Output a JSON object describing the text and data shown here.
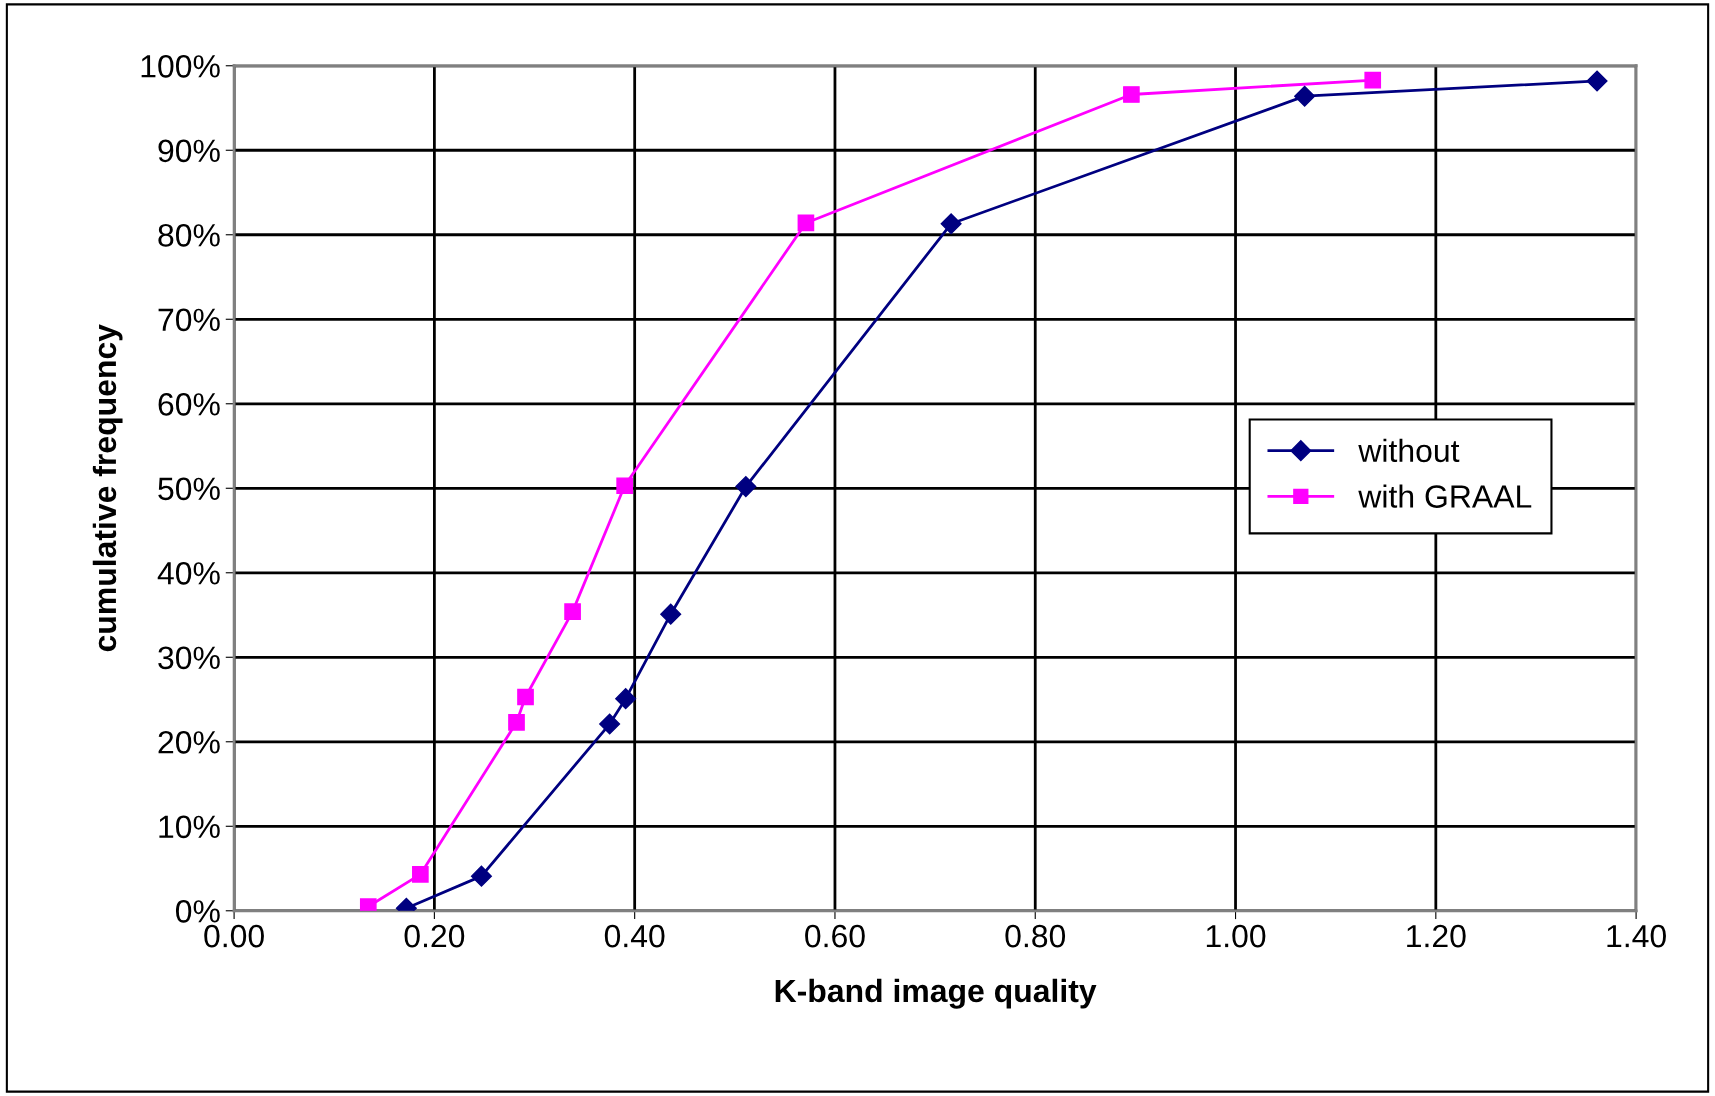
{
  "chart_data": {
    "type": "line",
    "xlabel": "K-band image quality",
    "ylabel": "cumulative frequency",
    "xlim": [
      0,
      1.4
    ],
    "xticks": [
      {
        "value": 0,
        "label": "0.00"
      },
      {
        "value": 0.2,
        "label": "0.20"
      },
      {
        "value": 0.4,
        "label": "0.40"
      },
      {
        "value": 0.6,
        "label": "0.60"
      },
      {
        "value": 0.8,
        "label": "0.80"
      },
      {
        "value": 1.0,
        "label": "1.00"
      },
      {
        "value": 1.2,
        "label": "1.20"
      },
      {
        "value": 1.4,
        "label": "1.40"
      }
    ],
    "ylim": [
      0,
      100
    ],
    "yticks": [
      {
        "value": 0,
        "label": "0%"
      },
      {
        "value": 10,
        "label": "10%"
      },
      {
        "value": 20,
        "label": "20%"
      },
      {
        "value": 30,
        "label": "30%"
      },
      {
        "value": 40,
        "label": "40%"
      },
      {
        "value": 50,
        "label": "50%"
      },
      {
        "value": 60,
        "label": "60%"
      },
      {
        "value": 70,
        "label": "70%"
      },
      {
        "value": 80,
        "label": "80%"
      },
      {
        "value": 90,
        "label": "90%"
      },
      {
        "value": 100,
        "label": "100%"
      }
    ],
    "grid": true,
    "legend": "right",
    "line_style": "solid",
    "series": [
      {
        "name": "without",
        "color": "#000080",
        "marker": "diamond",
        "x": [
          0.172,
          0.247,
          0.375,
          0.391,
          0.436,
          0.511,
          0.716,
          1.069,
          1.361
        ],
        "values": [
          0.3,
          4.1,
          22.1,
          25.1,
          35.1,
          50.2,
          81.3,
          96.4,
          98.2
        ]
      },
      {
        "name": "with GRAAL",
        "color": "#ff00ff",
        "marker": "square",
        "x": [
          0.134,
          0.186,
          0.282,
          0.291,
          0.338,
          0.39,
          0.571,
          0.896,
          1.137
        ],
        "values": [
          0.5,
          4.3,
          22.3,
          25.3,
          35.4,
          50.3,
          81.4,
          96.6,
          98.3
        ]
      }
    ]
  }
}
